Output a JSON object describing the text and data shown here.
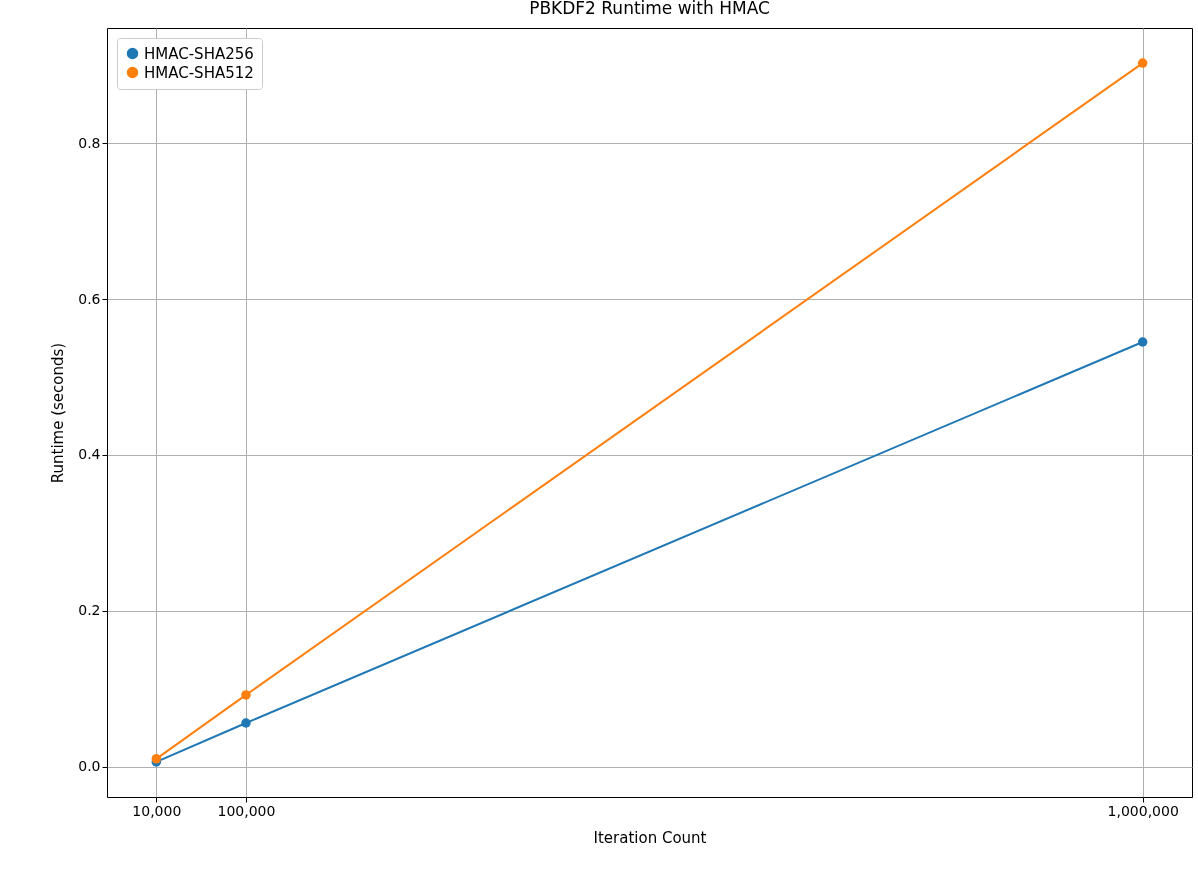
{
  "chart_data": {
    "type": "line",
    "title": "PBKDF2 Runtime with HMAC",
    "xlabel": "Iteration Count",
    "ylabel": "Runtime (seconds)",
    "x": [
      10000,
      100000,
      1000000
    ],
    "series": [
      {
        "name": "HMAC-SHA256",
        "color": "#1f77b4",
        "values": [
          0.006,
          0.056,
          0.545
        ]
      },
      {
        "name": "HMAC-SHA512",
        "color": "#ff7f0e",
        "values": [
          0.01,
          0.092,
          0.903
        ]
      }
    ],
    "xlim": [
      -39500,
      1049500
    ],
    "ylim": [
      -0.039,
      0.948
    ],
    "xticks": [
      {
        "value": 10000,
        "label": "10,000"
      },
      {
        "value": 100000,
        "label": "100,000"
      },
      {
        "value": 1000000,
        "label": "1,000,000"
      }
    ],
    "yticks": [
      {
        "value": 0,
        "label": "0.0"
      },
      {
        "value": 0.2,
        "label": "0.2"
      },
      {
        "value": 0.4,
        "label": "0.4"
      },
      {
        "value": 0.6,
        "label": "0.6"
      },
      {
        "value": 0.8,
        "label": "0.8"
      }
    ],
    "grid": true,
    "legend": "top left",
    "marker": "circle",
    "line_style": "solid"
  }
}
